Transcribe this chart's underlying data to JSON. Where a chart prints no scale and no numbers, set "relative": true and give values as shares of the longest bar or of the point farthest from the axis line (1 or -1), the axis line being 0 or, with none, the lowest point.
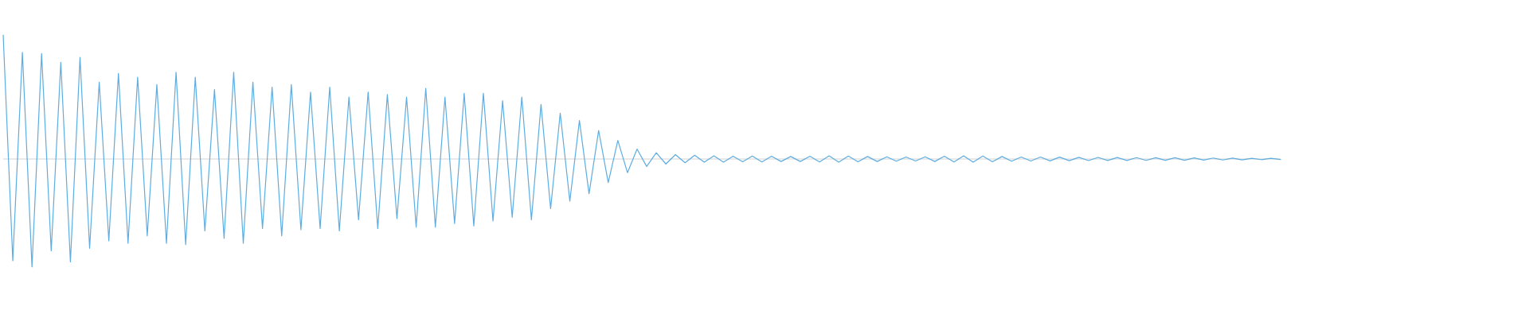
{
  "chart_data": {
    "type": "line",
    "relative": true,
    "color": "#5dade2",
    "categories": [
      null,
      null,
      null,
      null,
      null,
      null,
      null,
      null,
      null,
      null,
      null,
      null,
      null,
      null,
      null,
      null,
      null,
      null,
      null,
      null,
      null,
      null,
      null,
      null,
      null,
      null,
      null,
      null,
      null,
      null,
      null,
      null,
      null,
      null,
      null,
      null,
      null,
      null,
      null,
      null,
      null,
      null,
      null,
      null,
      null,
      null,
      null,
      null,
      null,
      null,
      null,
      null,
      null,
      null,
      null,
      null,
      null,
      null,
      null,
      null,
      null,
      null,
      null,
      null,
      null,
      null,
      null,
      null,
      null,
      null,
      null,
      null,
      null,
      null,
      null,
      null,
      null,
      null,
      null,
      null,
      null,
      null,
      null,
      null,
      null,
      null,
      null,
      null,
      null,
      null,
      null,
      null,
      null,
      null,
      null,
      null,
      null,
      null,
      null,
      null,
      null,
      null,
      null,
      null,
      null,
      null,
      null,
      null,
      null,
      null,
      null,
      null,
      null,
      null,
      null,
      null,
      null,
      null,
      null,
      null,
      null,
      null,
      null,
      null,
      null,
      null,
      null,
      null,
      null,
      null,
      null,
      null,
      null,
      null
    ],
    "values": [
      1.0,
      -0.82,
      0.86,
      -0.87,
      0.85,
      -0.74,
      0.78,
      -0.83,
      0.82,
      -0.72,
      0.62,
      -0.66,
      0.69,
      -0.68,
      0.66,
      -0.62,
      0.6,
      -0.68,
      0.7,
      -0.69,
      0.66,
      -0.58,
      0.56,
      -0.64,
      0.7,
      -0.68,
      0.62,
      -0.56,
      0.58,
      -0.62,
      0.6,
      -0.57,
      0.54,
      -0.56,
      0.58,
      -0.58,
      0.5,
      -0.49,
      0.54,
      -0.56,
      0.52,
      -0.48,
      0.5,
      -0.55,
      0.57,
      -0.55,
      0.5,
      -0.52,
      0.53,
      -0.54,
      0.53,
      -0.5,
      0.47,
      -0.47,
      0.5,
      -0.49,
      0.44,
      -0.4,
      0.37,
      -0.34,
      0.31,
      -0.28,
      0.23,
      -0.19,
      0.15,
      -0.11,
      0.08,
      -0.06,
      0.05,
      -0.04,
      0.035,
      -0.03,
      0.03,
      -0.025,
      0.025,
      -0.025,
      0.022,
      -0.022,
      0.024,
      -0.024,
      0.022,
      -0.02,
      0.02,
      -0.02,
      0.022,
      -0.024,
      0.025,
      -0.025,
      0.024,
      -0.022,
      0.02,
      -0.02,
      0.018,
      -0.018,
      0.016,
      -0.016,
      0.018,
      -0.02,
      0.022,
      -0.024,
      0.025,
      -0.025,
      0.024,
      -0.022,
      0.02,
      -0.018,
      0.016,
      -0.016,
      0.016,
      -0.015,
      0.015,
      -0.014,
      0.014,
      -0.013,
      0.013,
      -0.012,
      0.012,
      -0.012,
      0.011,
      -0.011,
      0.01,
      -0.01,
      0.01,
      -0.01,
      0.009,
      -0.009,
      0.008,
      -0.008,
      0.007,
      -0.007,
      0.006,
      -0.005,
      0.005,
      -0.004
    ]
  }
}
